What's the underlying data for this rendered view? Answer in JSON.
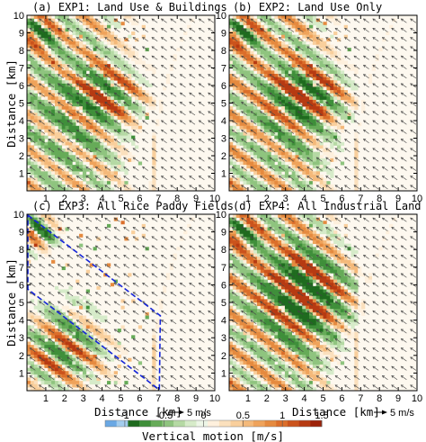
{
  "chart_data": {
    "type": "heatmap",
    "panels": [
      {
        "id": "a",
        "title": "(a) EXP1: Land Use & Buildings",
        "field": "buildings"
      },
      {
        "id": "b",
        "title": "(b) EXP2: Land Use Only",
        "field": "landuse"
      },
      {
        "id": "c",
        "title": "(c) EXP3: All Rice Paddy Fields",
        "field": "rice"
      },
      {
        "id": "d",
        "title": "(d) EXP4: All Industrial Land",
        "field": "industrial"
      }
    ],
    "x_ticks": [
      "1",
      "2",
      "3",
      "4",
      "5",
      "6",
      "7",
      "8",
      "9",
      "10"
    ],
    "y_ticks": [
      "1",
      "2",
      "3",
      "4",
      "5",
      "6",
      "7",
      "8",
      "9",
      "10"
    ],
    "xlim": [
      0,
      10
    ],
    "ylim": [
      0,
      10
    ],
    "xlabel": "Distance [km]",
    "ylabel": "Distance [km]",
    "vector_reference_label": "5 m/s",
    "colorbar": {
      "label": "Vertical motion [m/s]",
      "ticks": [
        "-1",
        "-0.5",
        "0",
        "0.5",
        "1",
        "1.5"
      ],
      "range": [
        -1.25,
        1.5
      ],
      "colors": [
        "#6aa8e4",
        "#a4cdee",
        "#1f6b1f",
        "#3f8f3a",
        "#66ab58",
        "#8fc47f",
        "#b5d9a4",
        "#d6ebc9",
        "#edf6e7",
        "#fef0dd",
        "#fbe0bd",
        "#f9cf9c",
        "#f4b97a",
        "#efa35b",
        "#e58a3f",
        "#db6e2a",
        "#cb531c",
        "#b63a12",
        "#9d2209"
      ]
    },
    "region_outline_vertices_km": [
      [
        0.05,
        9.95
      ],
      [
        7.1,
        4.25
      ],
      [
        7.05,
        0.05
      ],
      [
        0.05,
        5.75
      ]
    ]
  }
}
